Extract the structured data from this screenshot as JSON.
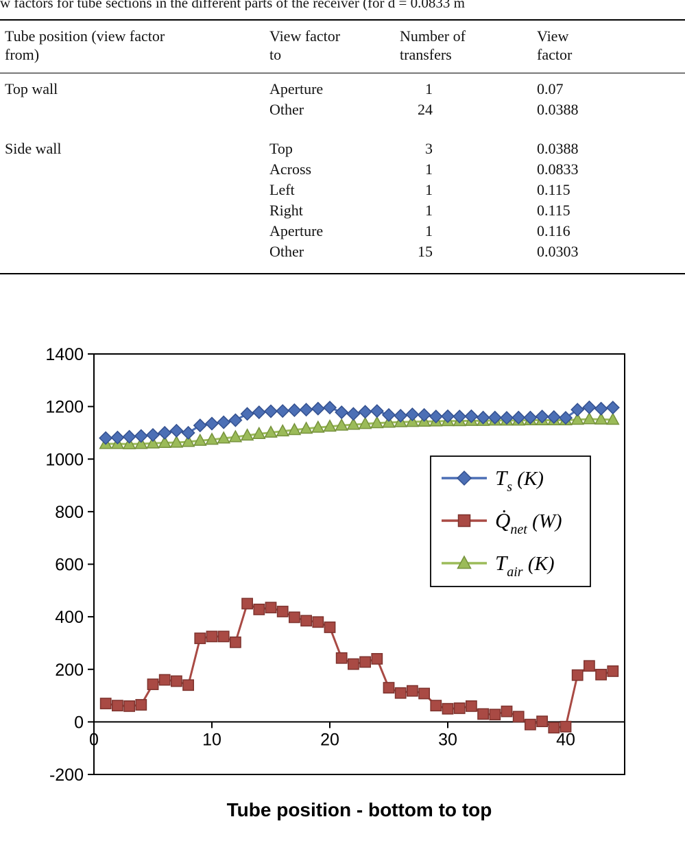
{
  "caption_visible": "w factors for tube sections in the different parts of the receiver (for d = 0.0833 m",
  "table": {
    "columns": [
      "Tube position (view factor from)",
      "View factor to",
      "Number of transfers",
      "View factor"
    ],
    "groups": [
      {
        "position": "Top wall",
        "rows": [
          [
            "Aperture",
            "1",
            "0.07"
          ],
          [
            "Other",
            "24",
            "0.0388"
          ]
        ]
      },
      {
        "position": "Side wall",
        "rows": [
          [
            "Top",
            "3",
            "0.0388"
          ],
          [
            "Across",
            "1",
            "0.0833"
          ],
          [
            "Left",
            "1",
            "0.115"
          ],
          [
            "Right",
            "1",
            "0.115"
          ],
          [
            "Aperture",
            "1",
            "0.116"
          ],
          [
            "Other",
            "15",
            "0.0303"
          ]
        ]
      }
    ]
  },
  "chart_data": {
    "type": "line",
    "title": "",
    "xlabel": "Tube position - bottom to top",
    "ylabel": "",
    "xlim": [
      0,
      45
    ],
    "ylim": [
      -200,
      1400
    ],
    "xticks": [
      0,
      10,
      20,
      30,
      40
    ],
    "yticks": [
      -200,
      0,
      200,
      400,
      600,
      800,
      1000,
      1200,
      1400
    ],
    "grid": false,
    "x": [
      1,
      2,
      3,
      4,
      5,
      6,
      7,
      8,
      9,
      10,
      11,
      12,
      13,
      14,
      15,
      16,
      17,
      18,
      19,
      20,
      21,
      22,
      23,
      24,
      25,
      26,
      27,
      28,
      29,
      30,
      31,
      32,
      33,
      34,
      35,
      36,
      37,
      38,
      39,
      40,
      41,
      42,
      43,
      44
    ],
    "series": [
      {
        "name": "Ts (K)",
        "marker": "diamond",
        "color": "#4C6FB5",
        "edge": "#33508F",
        "values": [
          1080,
          1082,
          1085,
          1088,
          1092,
          1100,
          1108,
          1100,
          1128,
          1135,
          1140,
          1148,
          1172,
          1178,
          1182,
          1183,
          1186,
          1188,
          1192,
          1196,
          1178,
          1172,
          1180,
          1183,
          1168,
          1165,
          1170,
          1168,
          1162,
          1163,
          1162,
          1163,
          1158,
          1158,
          1157,
          1158,
          1158,
          1162,
          1160,
          1157,
          1188,
          1197,
          1192,
          1196
        ]
      },
      {
        "name": "Qnet (W)",
        "marker": "square",
        "color": "#A94A44",
        "edge": "#7E332E",
        "values": [
          70,
          62,
          60,
          65,
          143,
          160,
          155,
          140,
          318,
          325,
          325,
          303,
          450,
          428,
          435,
          420,
          398,
          385,
          380,
          360,
          243,
          220,
          228,
          240,
          130,
          110,
          118,
          108,
          62,
          50,
          52,
          60,
          30,
          28,
          40,
          20,
          -10,
          2,
          -22,
          -18,
          178,
          213,
          180,
          193
        ]
      },
      {
        "name": "Tair (K)",
        "marker": "triangle",
        "color": "#9BBB59",
        "edge": "#76923C",
        "values": [
          1058,
          1058,
          1057,
          1058,
          1060,
          1062,
          1063,
          1066,
          1070,
          1074,
          1079,
          1084,
          1090,
          1096,
          1101,
          1106,
          1111,
          1116,
          1120,
          1124,
          1128,
          1131,
          1134,
          1137,
          1139,
          1141,
          1142,
          1143,
          1144,
          1145,
          1145,
          1146,
          1146,
          1147,
          1147,
          1147,
          1148,
          1148,
          1148,
          1148,
          1150,
          1152,
          1151,
          1150
        ]
      }
    ],
    "legend": {
      "position": "inside-upper-right",
      "entries": [
        {
          "main": "T",
          "sub": "s",
          "unit": " (K)"
        },
        {
          "main": "Q̇",
          "sub": "net",
          "unit": " (W)"
        },
        {
          "main": "T",
          "sub": "air",
          "unit": " (K)"
        }
      ]
    }
  }
}
